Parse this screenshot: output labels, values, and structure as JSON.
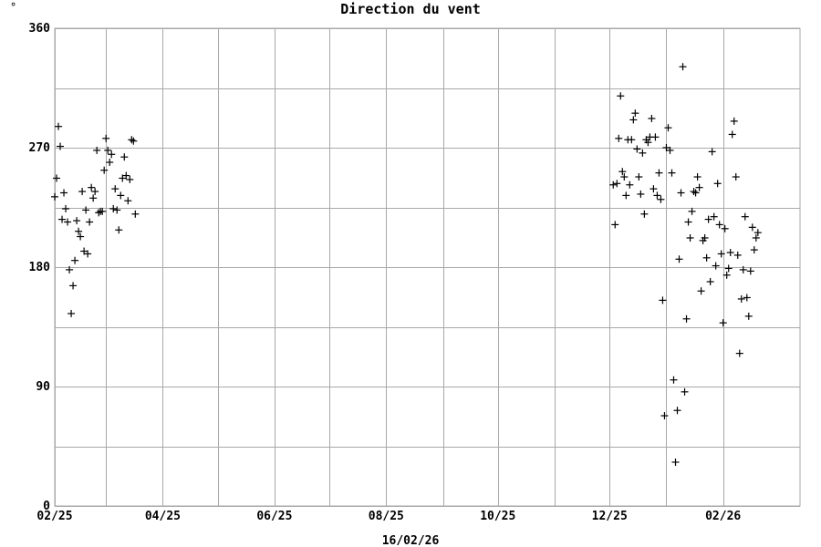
{
  "chart_data": {
    "type": "scatter",
    "title": "Direction du vent",
    "unit_symbol": "°",
    "xlabel": "16/02/26",
    "ylabel": "",
    "marker": "+",
    "grid": true,
    "colors": {
      "grid": "#a8a8a8",
      "points": "#000000",
      "background": "#ffffff"
    },
    "xlim": [
      "2025-02-01",
      "2026-03-15"
    ],
    "ylim": [
      0,
      360
    ],
    "yticks": [
      0,
      90,
      180,
      270,
      360
    ],
    "xticks": [
      {
        "date": "2025-02-01",
        "label": "02/25"
      },
      {
        "date": "2025-04-01",
        "label": "04/25"
      },
      {
        "date": "2025-06-01",
        "label": "06/25"
      },
      {
        "date": "2025-08-01",
        "label": "08/25"
      },
      {
        "date": "2025-10-01",
        "label": "10/25"
      },
      {
        "date": "2025-12-01",
        "label": "12/25"
      },
      {
        "date": "2026-02-01",
        "label": "02/26"
      }
    ],
    "xgrid": [
      "2025-02-01",
      "2025-03-01",
      "2025-04-01",
      "2025-05-01",
      "2025-06-01",
      "2025-07-01",
      "2025-08-01",
      "2025-09-01",
      "2025-10-01",
      "2025-11-01",
      "2025-12-01",
      "2026-01-01",
      "2026-02-01"
    ],
    "ygrid": [
      0,
      45,
      90,
      135,
      180,
      225,
      270,
      315,
      360
    ],
    "points": [
      [
        "2025-02-01",
        233
      ],
      [
        "2025-02-02",
        247
      ],
      [
        "2025-02-03",
        286
      ],
      [
        "2025-02-04",
        271
      ],
      [
        "2025-02-05",
        216
      ],
      [
        "2025-02-06",
        236
      ],
      [
        "2025-02-07",
        224
      ],
      [
        "2025-02-08",
        214
      ],
      [
        "2025-02-09",
        178
      ],
      [
        "2025-02-10",
        145
      ],
      [
        "2025-02-11",
        166
      ],
      [
        "2025-02-12",
        185
      ],
      [
        "2025-02-13",
        215
      ],
      [
        "2025-02-14",
        207
      ],
      [
        "2025-02-15",
        203
      ],
      [
        "2025-02-16",
        237
      ],
      [
        "2025-02-17",
        192
      ],
      [
        "2025-02-18",
        223
      ],
      [
        "2025-02-19",
        190
      ],
      [
        "2025-02-20",
        214
      ],
      [
        "2025-02-21",
        240
      ],
      [
        "2025-02-22",
        232
      ],
      [
        "2025-02-23",
        237
      ],
      [
        "2025-02-24",
        268
      ],
      [
        "2025-02-25",
        221
      ],
      [
        "2025-02-26",
        222
      ],
      [
        "2025-02-27",
        222
      ],
      [
        "2025-02-28",
        253
      ],
      [
        "2025-03-01",
        277
      ],
      [
        "2025-03-02",
        268
      ],
      [
        "2025-03-03",
        259
      ],
      [
        "2025-03-04",
        265
      ],
      [
        "2025-03-05",
        224
      ],
      [
        "2025-03-06",
        239
      ],
      [
        "2025-03-07",
        223
      ],
      [
        "2025-03-08",
        208
      ],
      [
        "2025-03-09",
        234
      ],
      [
        "2025-03-10",
        247
      ],
      [
        "2025-03-11",
        263
      ],
      [
        "2025-03-12",
        249
      ],
      [
        "2025-03-13",
        230
      ],
      [
        "2025-03-14",
        246
      ],
      [
        "2025-03-15",
        276
      ],
      [
        "2025-03-16",
        275
      ],
      [
        "2025-03-17",
        220
      ],
      [
        "2025-12-03",
        242
      ],
      [
        "2025-12-04",
        212
      ],
      [
        "2025-12-05",
        243
      ],
      [
        "2025-12-06",
        277
      ],
      [
        "2025-12-07",
        309
      ],
      [
        "2025-12-08",
        252
      ],
      [
        "2025-12-09",
        248
      ],
      [
        "2025-12-10",
        234
      ],
      [
        "2025-12-11",
        276
      ],
      [
        "2025-12-12",
        242
      ],
      [
        "2025-12-13",
        276
      ],
      [
        "2025-12-14",
        291
      ],
      [
        "2025-12-15",
        296
      ],
      [
        "2025-12-16",
        269
      ],
      [
        "2025-12-17",
        248
      ],
      [
        "2025-12-18",
        235
      ],
      [
        "2025-12-19",
        266
      ],
      [
        "2025-12-20",
        220
      ],
      [
        "2025-12-21",
        276
      ],
      [
        "2025-12-22",
        274
      ],
      [
        "2025-12-23",
        278
      ],
      [
        "2025-12-24",
        292
      ],
      [
        "2025-12-25",
        239
      ],
      [
        "2025-12-26",
        278
      ],
      [
        "2025-12-27",
        234
      ],
      [
        "2025-12-28",
        251
      ],
      [
        "2025-12-29",
        231
      ],
      [
        "2025-12-30",
        155
      ],
      [
        "2025-12-31",
        68
      ],
      [
        "2026-01-01",
        270
      ],
      [
        "2026-01-02",
        285
      ],
      [
        "2026-01-03",
        268
      ],
      [
        "2026-01-04",
        251
      ],
      [
        "2026-01-05",
        95
      ],
      [
        "2026-01-06",
        33
      ],
      [
        "2026-01-07",
        72
      ],
      [
        "2026-01-08",
        186
      ],
      [
        "2026-01-09",
        236
      ],
      [
        "2026-01-10",
        331
      ],
      [
        "2026-01-11",
        86
      ],
      [
        "2026-01-12",
        141
      ],
      [
        "2026-01-13",
        214
      ],
      [
        "2026-01-14",
        202
      ],
      [
        "2026-01-15",
        222
      ],
      [
        "2026-01-16",
        237
      ],
      [
        "2026-01-17",
        236
      ],
      [
        "2026-01-18",
        248
      ],
      [
        "2026-01-19",
        240
      ],
      [
        "2026-01-20",
        162
      ],
      [
        "2026-01-21",
        200
      ],
      [
        "2026-01-22",
        202
      ],
      [
        "2026-01-23",
        187
      ],
      [
        "2026-01-24",
        216
      ],
      [
        "2026-01-25",
        169
      ],
      [
        "2026-01-26",
        267
      ],
      [
        "2026-01-27",
        218
      ],
      [
        "2026-01-28",
        181
      ],
      [
        "2026-01-29",
        243
      ],
      [
        "2026-01-30",
        212
      ],
      [
        "2026-01-31",
        190
      ],
      [
        "2026-02-01",
        138
      ],
      [
        "2026-02-02",
        209
      ],
      [
        "2026-02-03",
        174
      ],
      [
        "2026-02-04",
        179
      ],
      [
        "2026-02-05",
        191
      ],
      [
        "2026-02-06",
        280
      ],
      [
        "2026-02-07",
        290
      ],
      [
        "2026-02-08",
        248
      ],
      [
        "2026-02-09",
        189
      ],
      [
        "2026-02-10",
        115
      ],
      [
        "2026-02-11",
        156
      ],
      [
        "2026-02-12",
        178
      ],
      [
        "2026-02-13",
        218
      ],
      [
        "2026-02-14",
        157
      ],
      [
        "2026-02-15",
        143
      ],
      [
        "2026-02-16",
        177
      ],
      [
        "2026-02-17",
        210
      ],
      [
        "2026-02-18",
        193
      ],
      [
        "2026-02-19",
        202
      ],
      [
        "2026-02-20",
        206
      ]
    ]
  }
}
